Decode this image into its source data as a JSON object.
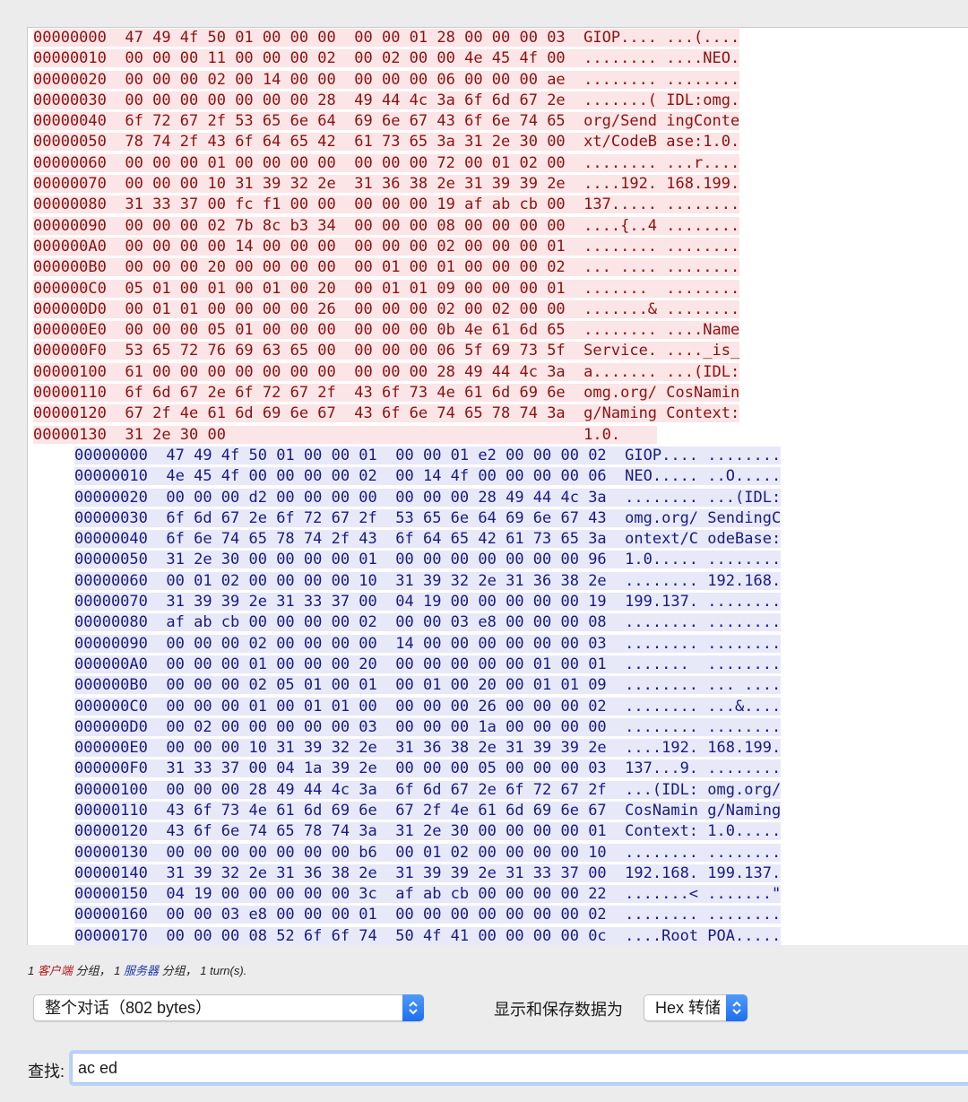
{
  "client_rows": [
    {
      "off": "00000000",
      "hex1": "47 49 4f 50 01 00 00 00",
      "hex2": "00 00 01 28 00 00 00 03",
      "asc1": "GIOP....",
      "asc2": "...(...."
    },
    {
      "off": "00000010",
      "hex1": "00 00 00 11 00 00 00 02",
      "hex2": "00 02 00 00 4e 45 4f 00",
      "asc1": "........",
      "asc2": "....NEO."
    },
    {
      "off": "00000020",
      "hex1": "00 00 00 02 00 14 00 00",
      "hex2": "00 00 00 06 00 00 00 ae",
      "asc1": "........",
      "asc2": "........"
    },
    {
      "off": "00000030",
      "hex1": "00 00 00 00 00 00 00 28",
      "hex2": "49 44 4c 3a 6f 6d 67 2e",
      "asc1": ".......(",
      "asc2": "IDL:omg."
    },
    {
      "off": "00000040",
      "hex1": "6f 72 67 2f 53 65 6e 64",
      "hex2": "69 6e 67 43 6f 6e 74 65",
      "asc1": "org/Send",
      "asc2": "ingConte"
    },
    {
      "off": "00000050",
      "hex1": "78 74 2f 43 6f 64 65 42",
      "hex2": "61 73 65 3a 31 2e 30 00",
      "asc1": "xt/CodeB",
      "asc2": "ase:1.0."
    },
    {
      "off": "00000060",
      "hex1": "00 00 00 01 00 00 00 00",
      "hex2": "00 00 00 72 00 01 02 00",
      "asc1": "........",
      "asc2": "...r...."
    },
    {
      "off": "00000070",
      "hex1": "00 00 00 10 31 39 32 2e",
      "hex2": "31 36 38 2e 31 39 39 2e",
      "asc1": "....192.",
      "asc2": "168.199."
    },
    {
      "off": "00000080",
      "hex1": "31 33 37 00 fc f1 00 00",
      "hex2": "00 00 00 19 af ab cb 00",
      "asc1": "137.....",
      "asc2": "........"
    },
    {
      "off": "00000090",
      "hex1": "00 00 00 02 7b 8c b3 34",
      "hex2": "00 00 00 08 00 00 00 00",
      "asc1": "....{..4",
      "asc2": "........"
    },
    {
      "off": "000000A0",
      "hex1": "00 00 00 00 14 00 00 00",
      "hex2": "00 00 00 02 00 00 00 01",
      "asc1": "........",
      "asc2": "........"
    },
    {
      "off": "000000B0",
      "hex1": "00 00 00 20 00 00 00 00",
      "hex2": "00 01 00 01 00 00 00 02",
      "asc1": "... ....",
      "asc2": "........"
    },
    {
      "off": "000000C0",
      "hex1": "05 01 00 01 00 01 00 20",
      "hex2": "00 01 01 09 00 00 00 01",
      "asc1": ".......",
      "asc2": "........"
    },
    {
      "off": "000000D0",
      "hex1": "00 01 01 00 00 00 00 26",
      "hex2": "00 00 00 02 00 02 00 00",
      "asc1": ".......&",
      "asc2": "........"
    },
    {
      "off": "000000E0",
      "hex1": "00 00 00 05 01 00 00 00",
      "hex2": "00 00 00 0b 4e 61 6d 65",
      "asc1": "........",
      "asc2": "....Name"
    },
    {
      "off": "000000F0",
      "hex1": "53 65 72 76 69 63 65 00",
      "hex2": "00 00 00 06 5f 69 73 5f",
      "asc1": "Service.",
      "asc2": "...._is_"
    },
    {
      "off": "00000100",
      "hex1": "61 00 00 00 00 00 00 00",
      "hex2": "00 00 00 28 49 44 4c 3a",
      "asc1": "a.......",
      "asc2": "...(IDL:"
    },
    {
      "off": "00000110",
      "hex1": "6f 6d 67 2e 6f 72 67 2f",
      "hex2": "43 6f 73 4e 61 6d 69 6e",
      "asc1": "omg.org/",
      "asc2": "CosNamin"
    },
    {
      "off": "00000120",
      "hex1": "67 2f 4e 61 6d 69 6e 67",
      "hex2": "43 6f 6e 74 65 78 74 3a",
      "asc1": "g/Naming",
      "asc2": "Context:"
    },
    {
      "off": "00000130",
      "hex1": "31 2e 30 00",
      "hex2": "",
      "asc1": "1.0.",
      "asc2": ""
    }
  ],
  "server_rows": [
    {
      "off": "00000000",
      "hex1": "47 49 4f 50 01 00 00 01",
      "hex2": "00 00 01 e2 00 00 00 02",
      "asc1": "GIOP....",
      "asc2": "........"
    },
    {
      "off": "00000010",
      "hex1": "4e 45 4f 00 00 00 00 02",
      "hex2": "00 14 4f 00 00 00 00 06",
      "asc1": "NEO.....",
      "asc2": "..O....."
    },
    {
      "off": "00000020",
      "hex1": "00 00 00 d2 00 00 00 00",
      "hex2": "00 00 00 28 49 44 4c 3a",
      "asc1": "........",
      "asc2": "...(IDL:"
    },
    {
      "off": "00000030",
      "hex1": "6f 6d 67 2e 6f 72 67 2f",
      "hex2": "53 65 6e 64 69 6e 67 43",
      "asc1": "omg.org/",
      "asc2": "SendingC"
    },
    {
      "off": "00000040",
      "hex1": "6f 6e 74 65 78 74 2f 43",
      "hex2": "6f 64 65 42 61 73 65 3a",
      "asc1": "ontext/C",
      "asc2": "odeBase:"
    },
    {
      "off": "00000050",
      "hex1": "31 2e 30 00 00 00 00 01",
      "hex2": "00 00 00 00 00 00 00 96",
      "asc1": "1.0.....",
      "asc2": "........"
    },
    {
      "off": "00000060",
      "hex1": "00 01 02 00 00 00 00 10",
      "hex2": "31 39 32 2e 31 36 38 2e",
      "asc1": "........",
      "asc2": "192.168."
    },
    {
      "off": "00000070",
      "hex1": "31 39 39 2e 31 33 37 00",
      "hex2": "04 19 00 00 00 00 00 19",
      "asc1": "199.137.",
      "asc2": "........"
    },
    {
      "off": "00000080",
      "hex1": "af ab cb 00 00 00 00 02",
      "hex2": "00 00 03 e8 00 00 00 08",
      "asc1": "........",
      "asc2": "........"
    },
    {
      "off": "00000090",
      "hex1": "00 00 00 02 00 00 00 00",
      "hex2": "14 00 00 00 00 00 00 03",
      "asc1": "........",
      "asc2": "........"
    },
    {
      "off": "000000A0",
      "hex1": "00 00 00 01 00 00 00 20",
      "hex2": "00 00 00 00 00 01 00 01",
      "asc1": ".......",
      "asc2": "........"
    },
    {
      "off": "000000B0",
      "hex1": "00 00 00 02 05 01 00 01",
      "hex2": "00 01 00 20 00 01 01 09",
      "asc1": "........",
      "asc2": "... ...."
    },
    {
      "off": "000000C0",
      "hex1": "00 00 00 01 00 01 01 00",
      "hex2": "00 00 00 26 00 00 00 02",
      "asc1": "........",
      "asc2": "...&...."
    },
    {
      "off": "000000D0",
      "hex1": "00 02 00 00 00 00 00 03",
      "hex2": "00 00 00 1a 00 00 00 00",
      "asc1": "........",
      "asc2": "........"
    },
    {
      "off": "000000E0",
      "hex1": "00 00 00 10 31 39 32 2e",
      "hex2": "31 36 38 2e 31 39 39 2e",
      "asc1": "....192.",
      "asc2": "168.199."
    },
    {
      "off": "000000F0",
      "hex1": "31 33 37 00 04 1a 39 2e",
      "hex2": "00 00 00 05 00 00 00 03",
      "asc1": "137...9.",
      "asc2": "........"
    },
    {
      "off": "00000100",
      "hex1": "00 00 00 28 49 44 4c 3a",
      "hex2": "6f 6d 67 2e 6f 72 67 2f",
      "asc1": "...(IDL:",
      "asc2": "omg.org/"
    },
    {
      "off": "00000110",
      "hex1": "43 6f 73 4e 61 6d 69 6e",
      "hex2": "67 2f 4e 61 6d 69 6e 67",
      "asc1": "CosNamin",
      "asc2": "g/Naming"
    },
    {
      "off": "00000120",
      "hex1": "43 6f 6e 74 65 78 74 3a",
      "hex2": "31 2e 30 00 00 00 00 01",
      "asc1": "Context:",
      "asc2": "1.0....."
    },
    {
      "off": "00000130",
      "hex1": "00 00 00 00 00 00 00 b6",
      "hex2": "00 01 02 00 00 00 00 10",
      "asc1": "........",
      "asc2": "........"
    },
    {
      "off": "00000140",
      "hex1": "31 39 32 2e 31 36 38 2e",
      "hex2": "31 39 39 2e 31 33 37 00",
      "asc1": "192.168.",
      "asc2": "199.137."
    },
    {
      "off": "00000150",
      "hex1": "04 19 00 00 00 00 00 3c",
      "hex2": "af ab cb 00 00 00 00 22",
      "asc1": ".......<",
      "asc2": ".......\""
    },
    {
      "off": "00000160",
      "hex1": "00 00 03 e8 00 00 00 01",
      "hex2": "00 00 00 00 00 00 00 02",
      "asc1": "........",
      "asc2": "........"
    },
    {
      "off": "00000170",
      "hex1": "00 00 00 08 52 6f 6f 74",
      "hex2": "50 4f 41 00 00 00 00 0c",
      "asc1": "....Root",
      "asc2": "POA....."
    }
  ],
  "summary": {
    "client_count": "1",
    "client_label": "客户端",
    "client_suffix": "分组，",
    "server_count": "1",
    "server_label": "服务器",
    "server_suffix": "分组，",
    "turns": "1 turn(s)."
  },
  "conversation_select": {
    "value": "整个对话（802 bytes）"
  },
  "format": {
    "label": "显示和保存数据为",
    "value": "Hex 转储"
  },
  "find": {
    "label": "查找:",
    "value": "ac ed"
  },
  "colors": {
    "client_text": "#8b1111",
    "client_bg": "#fbe5e6",
    "server_text": "#1a1a82",
    "server_bg": "#e7e9f8",
    "focus": "#b9d4f6"
  }
}
